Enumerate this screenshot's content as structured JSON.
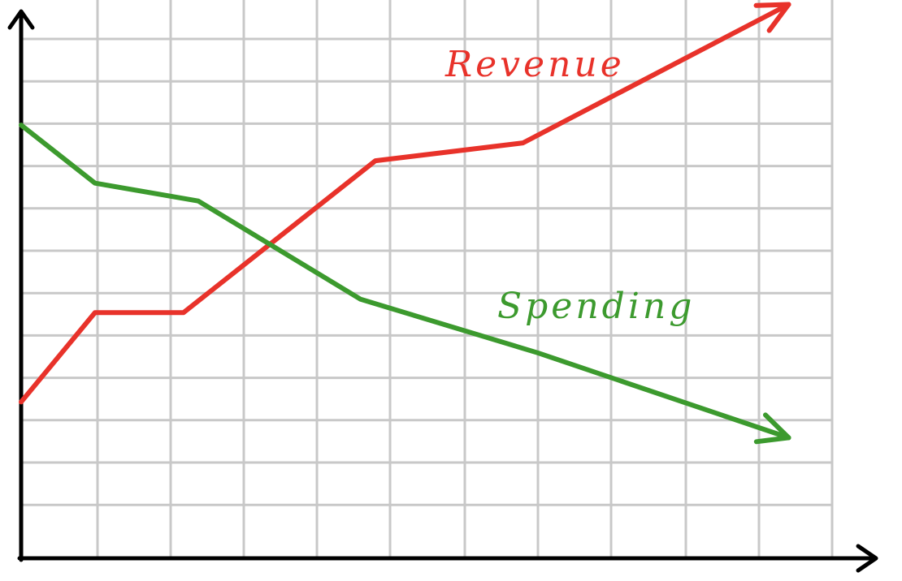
{
  "chart_data": {
    "type": "line",
    "title": "",
    "xlabel": "",
    "ylabel": "",
    "grid": true,
    "legend": "none",
    "x": [
      0,
      1,
      2,
      3,
      4,
      5,
      6,
      7,
      8,
      9,
      10
    ],
    "xlim": [
      0,
      11
    ],
    "ylim": [
      0,
      12.5
    ],
    "series": [
      {
        "name": "Revenue",
        "color": "#e8322a",
        "points": [
          [
            0,
            3.5
          ],
          [
            1,
            5.5
          ],
          [
            2.2,
            5.5
          ],
          [
            4.8,
            8.9
          ],
          [
            6.8,
            9.3
          ],
          [
            10.4,
            12.4
          ]
        ]
      },
      {
        "name": "Spending",
        "color": "#3c9a2e",
        "points": [
          [
            0,
            9.7
          ],
          [
            1,
            8.4
          ],
          [
            2.4,
            8.0
          ],
          [
            4.6,
            5.8
          ],
          [
            7,
            4.6
          ],
          [
            10.4,
            2.7
          ]
        ]
      }
    ]
  }
}
